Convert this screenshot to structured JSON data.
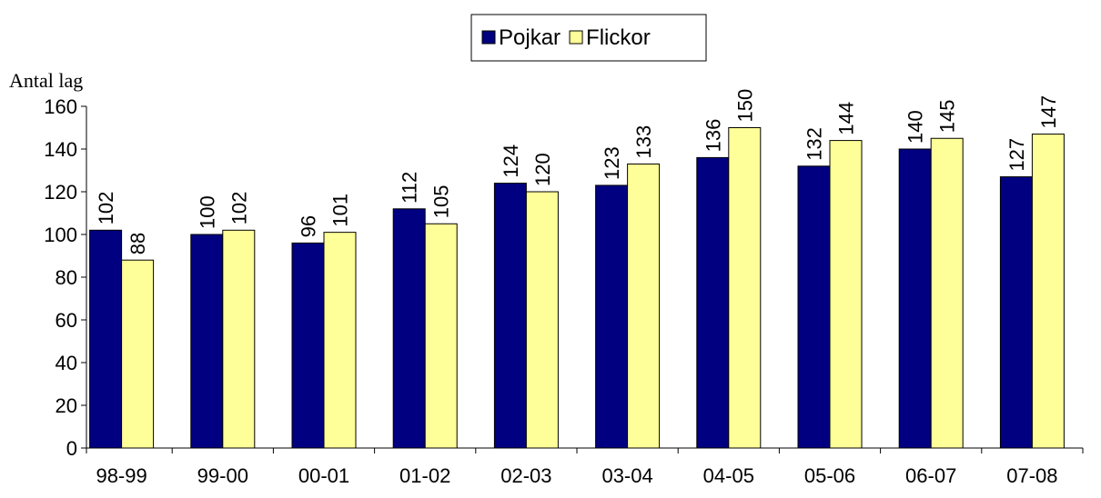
{
  "chart_data": {
    "type": "bar",
    "y_label": "Antal lag",
    "categories": [
      "98-99",
      "99-00",
      "00-01",
      "01-02",
      "02-03",
      "03-04",
      "04-05",
      "05-06",
      "06-07",
      "07-08"
    ],
    "series": [
      {
        "name": "Pojkar",
        "color": "#000080",
        "values": [
          102,
          100,
          96,
          112,
          124,
          123,
          136,
          132,
          140,
          127
        ]
      },
      {
        "name": "Flickor",
        "color": "#ffff99",
        "values": [
          88,
          102,
          101,
          105,
          120,
          133,
          150,
          144,
          145,
          147
        ]
      }
    ],
    "ylim": [
      0,
      160
    ],
    "yticks": [
      0,
      20,
      40,
      60,
      80,
      100,
      120,
      140,
      160
    ],
    "legend": "top"
  }
}
